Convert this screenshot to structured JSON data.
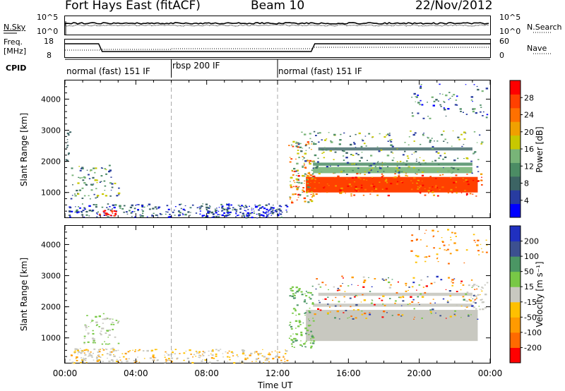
{
  "header": {
    "site": "Fort Hays East (fitACF)",
    "beam": "Beam 10",
    "date": "22/Nov/2012"
  },
  "noise_panel": {
    "left_label": "N.Sky",
    "left_ticks": [
      "10^5",
      "10^0"
    ],
    "right_ticks": [
      "10^5",
      "10^0"
    ],
    "right_label": "N.Search"
  },
  "freq_panel": {
    "left_label_1": "Freq.",
    "left_label_2": "[MHz]",
    "left_ticks": [
      "18",
      "8"
    ],
    "right_ticks": [
      "60",
      "0"
    ],
    "right_label": "Nave"
  },
  "cpid_panel": {
    "label": "CPID",
    "segments": [
      {
        "text": "normal (fast) 151 IF",
        "start_hour": 0
      },
      {
        "text": "rbsp 200 IF",
        "start_hour": 6
      },
      {
        "text": "normal (fast) 151 IF",
        "start_hour": 12
      }
    ]
  },
  "colors": {
    "power": [
      "#0000ff",
      "#283ca0",
      "#3c6464",
      "#4b8c64",
      "#78b478",
      "#c8c800",
      "#f0a000",
      "#ff7000",
      "#ff4000",
      "#ff0000"
    ],
    "velocity": [
      "#ff0000",
      "#ff6a00",
      "#ff9a00",
      "#ffc000",
      "#c8c8c0",
      "#78c846",
      "#4b9664",
      "#3c5090",
      "#2030c0"
    ],
    "sea": "#c8c8c0"
  },
  "chart_data": [
    {
      "type": "heatmap",
      "title": "",
      "xlabel": "",
      "ylabel": "Slant Range [km]",
      "xlim": [
        0,
        24
      ],
      "ylim": [
        200,
        4600
      ],
      "y_ticks": [
        1000,
        2000,
        3000,
        4000
      ],
      "colorbar": {
        "label": "Power [dB]",
        "ticks": [
          "4",
          "8",
          "12",
          "16",
          "20",
          "24",
          "28"
        ],
        "range": [
          0,
          30
        ]
      },
      "features": [
        {
          "name": "early echoes",
          "x_range": [
            1.5,
            3.0
          ],
          "y_range": [
            500,
            1800
          ],
          "level": "low"
        },
        {
          "name": "ground scatter band",
          "x_range": [
            12.8,
            23.5
          ],
          "y_range": [
            900,
            1600
          ],
          "level": "high (~25 dB)"
        },
        {
          "name": "upper scatter bands",
          "x_range": [
            13.0,
            23.5
          ],
          "y_range": [
            1700,
            2500
          ],
          "level": "moderate"
        }
      ]
    },
    {
      "type": "heatmap",
      "title": "",
      "xlabel": "Time UT",
      "ylabel": "Slant Range [km]",
      "xlim": [
        0,
        24
      ],
      "ylim": [
        200,
        4600
      ],
      "x_ticks": [
        "00:00",
        "04:00",
        "08:00",
        "12:00",
        "16:00",
        "20:00",
        "00:00"
      ],
      "y_ticks": [
        1000,
        2000,
        3000,
        4000
      ],
      "colorbar": {
        "label": "Velocity [m s^-1]",
        "ticks": [
          "-200",
          "-100",
          "-50",
          "-15",
          "15",
          "50",
          "100",
          "200"
        ],
        "range": [
          -250,
          250
        ]
      }
    }
  ],
  "axis_labels": {
    "x": "Time UT",
    "y1": "Slant Range [km]",
    "y2": "Slant Range [km]",
    "cb1": "Power [dB]",
    "cb2": "Velocity [m s⁻¹]"
  }
}
